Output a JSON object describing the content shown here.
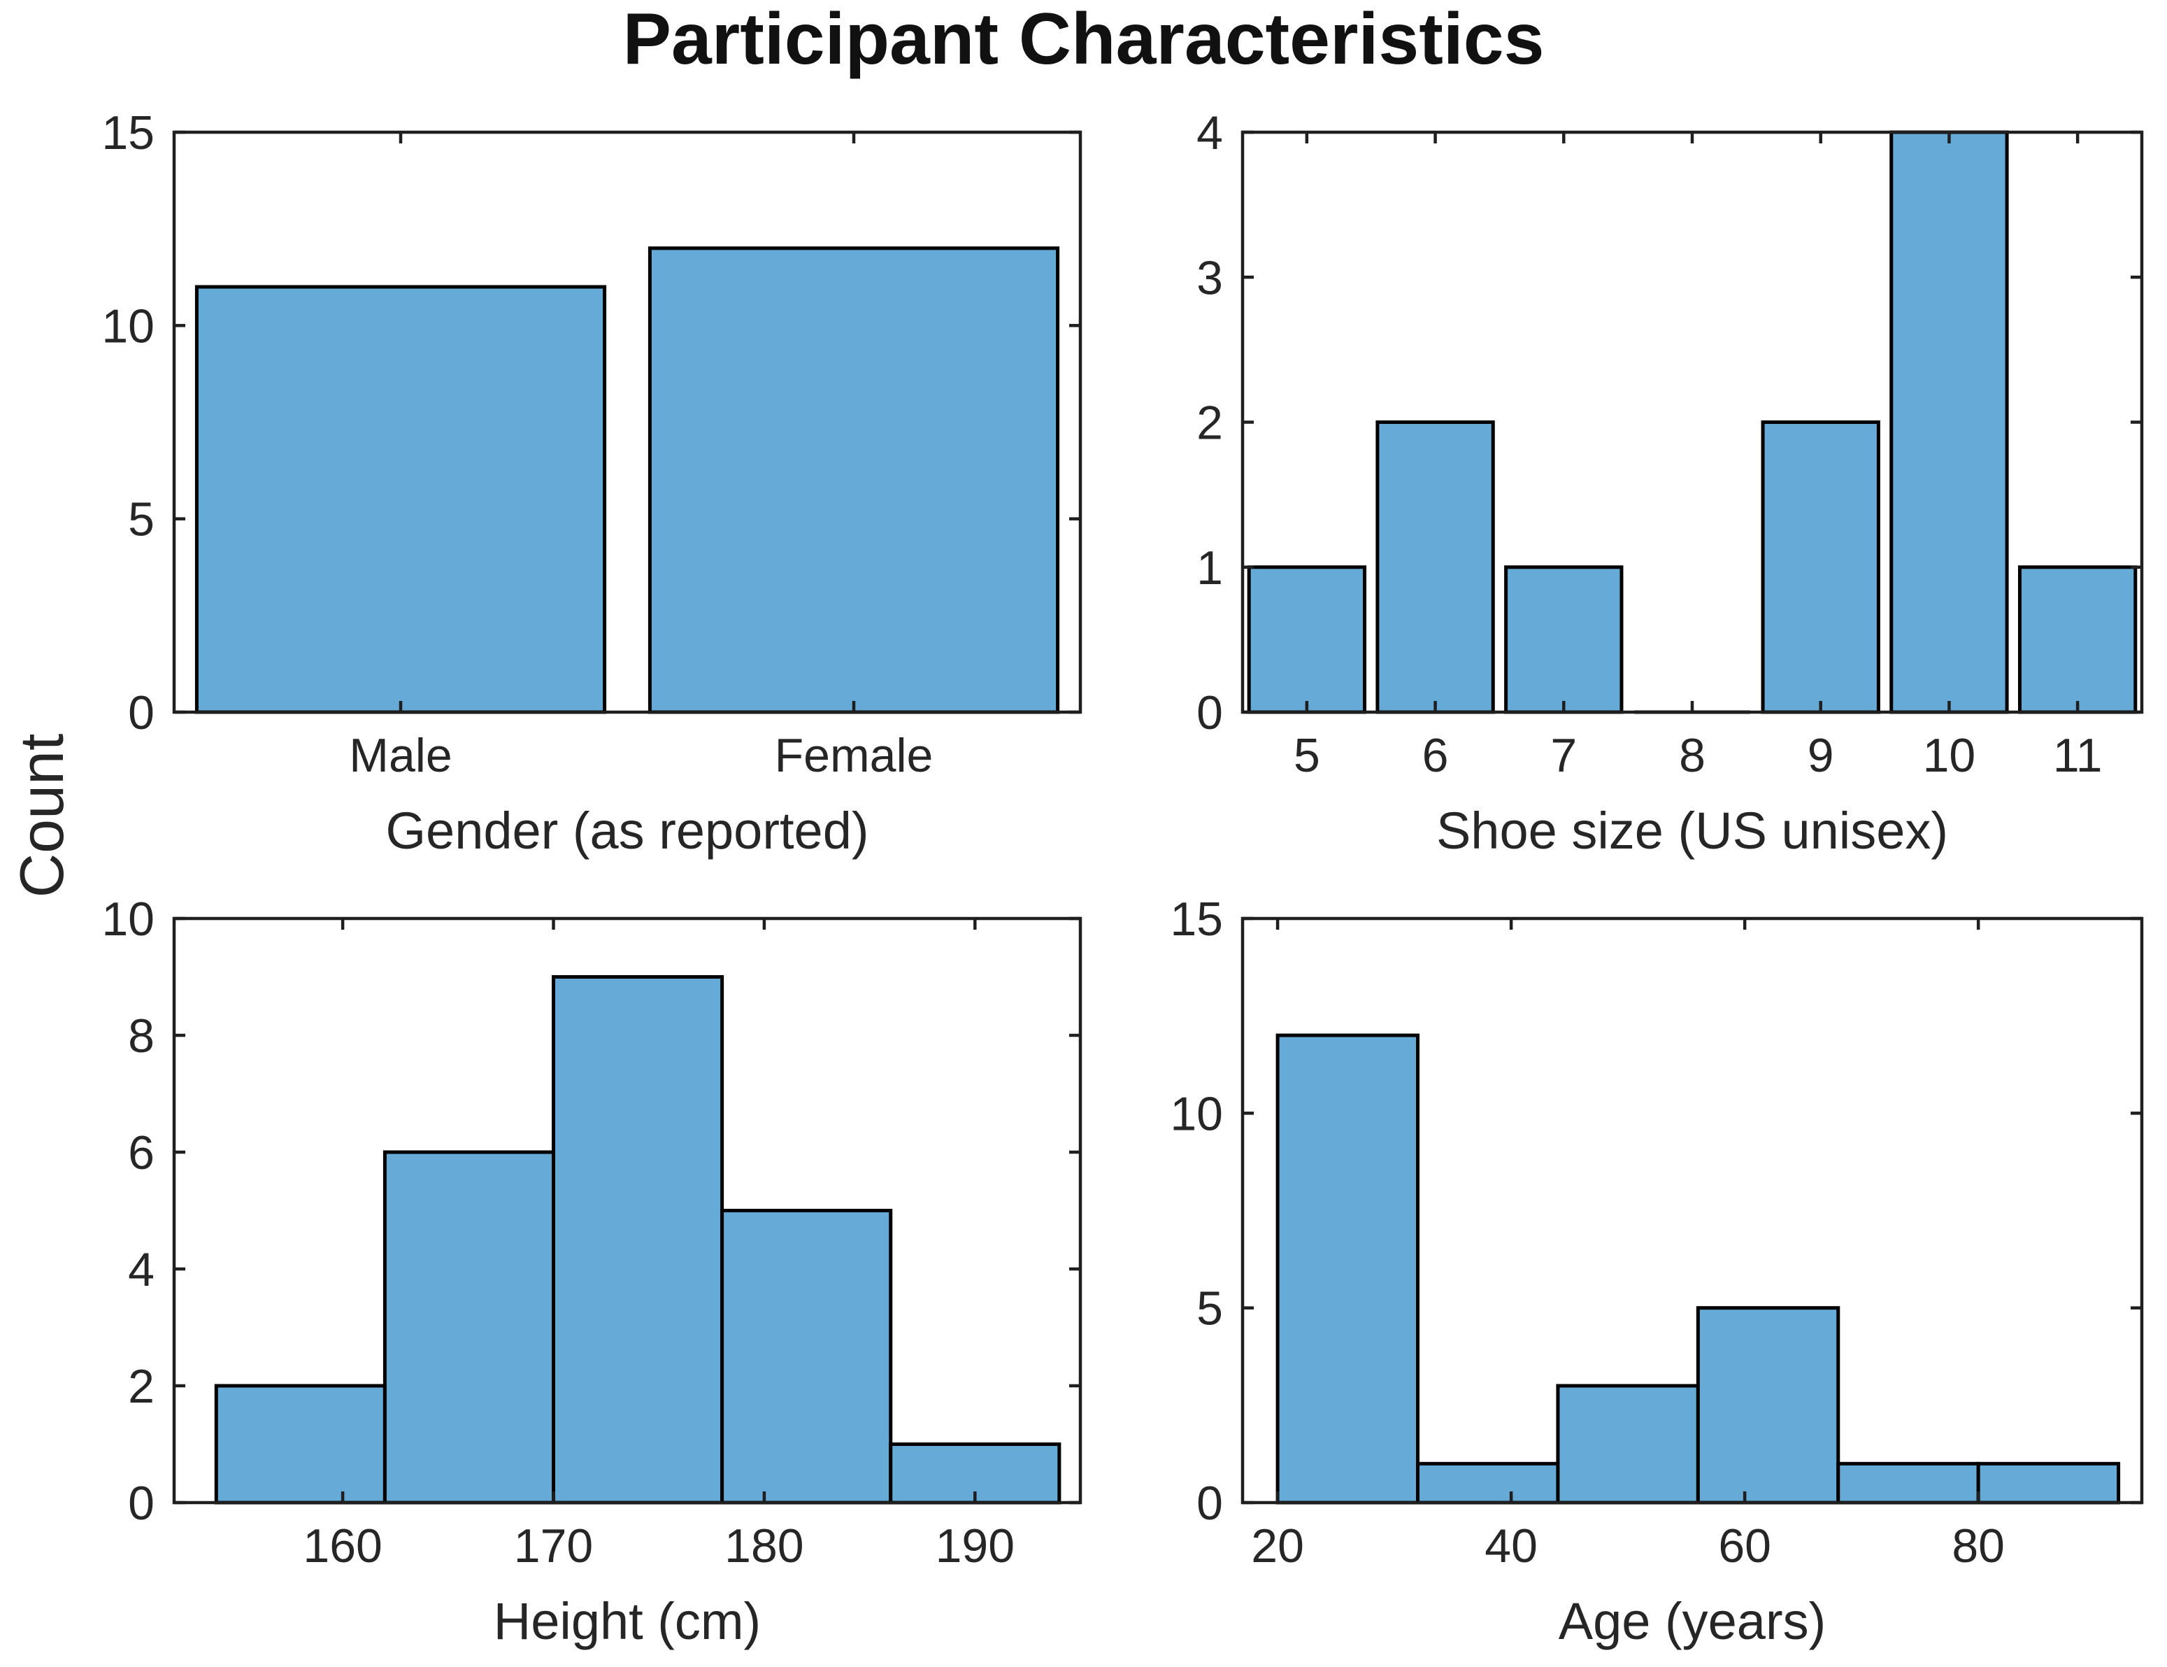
{
  "figure": {
    "title": "Participant Characteristics",
    "shared_ylabel": "Count",
    "colors": {
      "bar_fill": "#66AAD7",
      "bar_edge": "#000000",
      "axis": "#1f1f1f",
      "text": "#262626",
      "background": "#ffffff"
    }
  },
  "chart_data": [
    {
      "id": "gender",
      "type": "bar",
      "categories": [
        "Male",
        "Female"
      ],
      "centers": [
        1,
        2
      ],
      "values": [
        11,
        12
      ],
      "bar_width": 0.9,
      "xlim": [
        0.5,
        2.5
      ],
      "xticks": [
        1,
        2
      ],
      "xtick_labels": [
        "Male",
        "Female"
      ],
      "xlabel": "Gender (as reported)",
      "ylim": [
        0,
        15
      ],
      "yticks": [
        0,
        5,
        10,
        15
      ]
    },
    {
      "id": "shoe-size",
      "type": "bar",
      "centers": [
        5,
        6,
        7,
        8,
        9,
        10,
        11
      ],
      "values": [
        1,
        2,
        1,
        0,
        2,
        4,
        1
      ],
      "bar_width": 0.9,
      "xlim": [
        4.5,
        11.5
      ],
      "xticks": [
        5,
        6,
        7,
        8,
        9,
        10,
        11
      ],
      "xtick_labels": [
        "5",
        "6",
        "7",
        "8",
        "9",
        "10",
        "11"
      ],
      "xlabel": "Shoe size (US unisex)",
      "ylim": [
        0,
        4
      ],
      "yticks": [
        0,
        1,
        2,
        3,
        4
      ]
    },
    {
      "id": "height",
      "type": "histogram",
      "bin_edges": [
        154,
        162,
        170,
        178,
        186,
        194
      ],
      "values": [
        2,
        6,
        9,
        5,
        1
      ],
      "xlim": [
        152,
        195
      ],
      "xticks": [
        160,
        170,
        180,
        190
      ],
      "xtick_labels": [
        "160",
        "170",
        "180",
        "190"
      ],
      "xlabel": "Height (cm)",
      "ylim": [
        0,
        10
      ],
      "yticks": [
        0,
        2,
        4,
        6,
        8,
        10
      ]
    },
    {
      "id": "age",
      "type": "histogram",
      "bin_edges": [
        20,
        32,
        44,
        56,
        68,
        80,
        92
      ],
      "values": [
        12,
        1,
        3,
        5,
        1,
        1
      ],
      "xlim": [
        17,
        94
      ],
      "xticks": [
        20,
        40,
        60,
        80
      ],
      "xtick_labels": [
        "20",
        "40",
        "60",
        "80"
      ],
      "xlabel": "Age (years)",
      "ylim": [
        0,
        15
      ],
      "yticks": [
        0,
        5,
        10,
        15
      ]
    }
  ]
}
